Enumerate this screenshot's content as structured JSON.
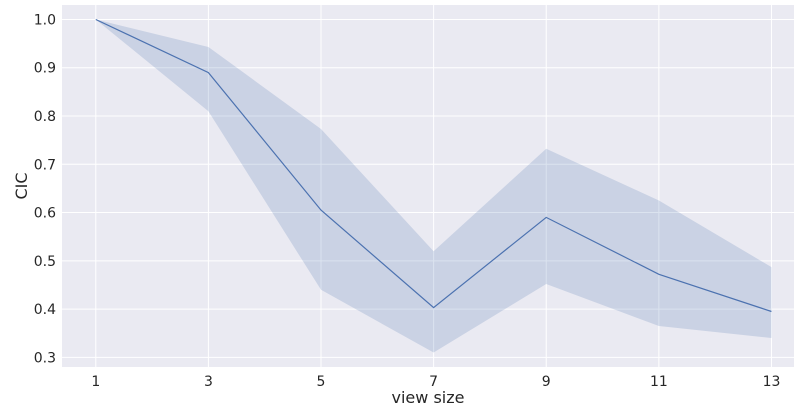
{
  "chart_data": {
    "type": "line",
    "xlabel": "view size",
    "ylabel": "CIC",
    "x": [
      1,
      3,
      5,
      7,
      9,
      11,
      13
    ],
    "xticks": [
      "1",
      "3",
      "5",
      "7",
      "9",
      "11",
      "13"
    ],
    "yticks": [
      "0.3",
      "0.4",
      "0.5",
      "0.6",
      "0.7",
      "0.8",
      "0.9",
      "1.0"
    ],
    "xlim": [
      0.4,
      13.4
    ],
    "ylim": [
      0.28,
      1.03
    ],
    "grid": true,
    "series": [
      {
        "values": [
          1.0,
          0.89,
          0.605,
          0.403,
          0.59,
          0.472,
          0.395
        ],
        "ci_lower": [
          1.0,
          0.81,
          0.44,
          0.31,
          0.452,
          0.365,
          0.34
        ],
        "ci_upper": [
          1.0,
          0.943,
          0.773,
          0.52,
          0.732,
          0.625,
          0.487
        ],
        "color": "#4c72b0"
      }
    ],
    "background_color": "#eaeaf2",
    "grid_color": "#ffffff"
  }
}
